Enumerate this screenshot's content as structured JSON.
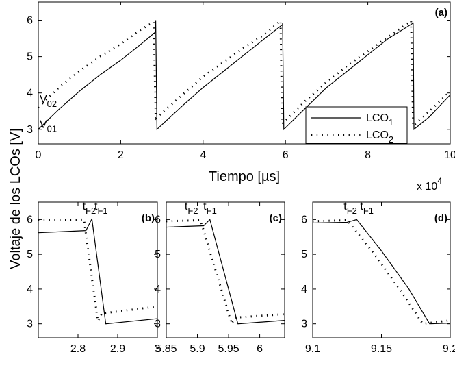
{
  "figure": {
    "ylabel": "Voltaje de los LCOs [V]",
    "colors": {
      "lco1": "#000000",
      "lco2": "#000000",
      "background": "#ffffff"
    }
  },
  "chart_data": [
    {
      "id": "a",
      "type": "line",
      "panel_label": "(a)",
      "xlabel": "Tiempo  [µs]",
      "x_multiplier": "x 10",
      "x_multiplier_exp": "4",
      "xlim": [
        0,
        10
      ],
      "ylim": [
        2.6,
        6.5
      ],
      "xticks": [
        0,
        2,
        4,
        6,
        8,
        10
      ],
      "xtick_labels": [
        "0",
        "2",
        "4",
        "6",
        "8",
        "10"
      ],
      "yticks": [
        3,
        4,
        5,
        6
      ],
      "ytick_labels": [
        "3",
        "4",
        "5",
        "6"
      ],
      "legend_position": "bottom-right",
      "annotations": [
        {
          "main": "V",
          "sub": "02",
          "x": 0,
          "y": 3.62
        },
        {
          "main": "V",
          "sub": "01",
          "x": 0,
          "y": 2.93
        }
      ],
      "series": [
        {
          "name": "LCO",
          "name_sub": "1",
          "style": "solid",
          "points": [
            [
              0,
              3.0
            ],
            [
              0.5,
              3.55
            ],
            [
              1,
              4.05
            ],
            [
              1.5,
              4.5
            ],
            [
              2,
              4.9
            ],
            [
              2.5,
              5.35
            ],
            [
              2.85,
              5.68
            ],
            [
              2.85,
              6.0
            ],
            [
              2.88,
              3.0
            ],
            [
              3.5,
              3.65
            ],
            [
              4,
              4.15
            ],
            [
              4.5,
              4.6
            ],
            [
              5,
              5.05
            ],
            [
              5.5,
              5.5
            ],
            [
              5.93,
              5.88
            ],
            [
              5.93,
              5.92
            ],
            [
              5.96,
              3.0
            ],
            [
              6.5,
              3.6
            ],
            [
              7,
              4.15
            ],
            [
              7.5,
              4.6
            ],
            [
              8,
              5.05
            ],
            [
              8.5,
              5.5
            ],
            [
              9.1,
              5.92
            ],
            [
              9.12,
              3.0
            ],
            [
              9.5,
              3.35
            ],
            [
              10,
              3.95
            ]
          ]
        },
        {
          "name": "LCO",
          "name_sub": "2",
          "style": "dotted",
          "points": [
            [
              0,
              3.6
            ],
            [
              0.5,
              4.15
            ],
            [
              1,
              4.6
            ],
            [
              1.5,
              5.0
            ],
            [
              2,
              5.35
            ],
            [
              2.5,
              5.75
            ],
            [
              2.8,
              5.95
            ],
            [
              2.85,
              3.3
            ],
            [
              3.5,
              3.95
            ],
            [
              4,
              4.45
            ],
            [
              4.5,
              4.85
            ],
            [
              5,
              5.25
            ],
            [
              5.5,
              5.62
            ],
            [
              5.88,
              5.98
            ],
            [
              5.92,
              3.15
            ],
            [
              6.5,
              3.8
            ],
            [
              7,
              4.3
            ],
            [
              7.5,
              4.75
            ],
            [
              8,
              5.15
            ],
            [
              8.5,
              5.55
            ],
            [
              9.05,
              5.98
            ],
            [
              9.1,
              3.1
            ],
            [
              9.5,
              3.5
            ],
            [
              10,
              4.05
            ]
          ]
        }
      ]
    },
    {
      "id": "b",
      "type": "line",
      "panel_label": "(b)",
      "xlim": [
        2.7,
        3.0
      ],
      "ylim": [
        2.6,
        6.5
      ],
      "xticks": [
        2.8,
        2.9,
        3.0
      ],
      "xtick_labels": [
        "2.8",
        "2.9",
        "3"
      ],
      "yticks": [
        3,
        4,
        5,
        6
      ],
      "ytick_labels": [
        "3",
        "4",
        "5",
        "6"
      ],
      "annotations": [
        {
          "main": "t",
          "sub": "F2",
          "x": 2.82,
          "y": 6.2
        },
        {
          "main": "t",
          "sub": "F1",
          "x": 2.85,
          "y": 6.2
        }
      ],
      "series": [
        {
          "name": "",
          "style": "solid",
          "points": [
            [
              2.7,
              5.62
            ],
            [
              2.82,
              5.68
            ],
            [
              2.835,
              6.02
            ],
            [
              2.87,
              3.0
            ],
            [
              3.0,
              3.15
            ]
          ]
        },
        {
          "name": "",
          "style": "dotted",
          "points": [
            [
              2.7,
              5.98
            ],
            [
              2.815,
              6.0
            ],
            [
              2.85,
              3.08
            ],
            [
              2.86,
              3.3
            ],
            [
              3.0,
              3.5
            ]
          ]
        }
      ]
    },
    {
      "id": "c",
      "type": "line",
      "panel_label": "(c)",
      "xlim": [
        5.85,
        6.04
      ],
      "ylim": [
        2.6,
        6.5
      ],
      "xticks": [
        5.85,
        5.9,
        5.95,
        6.0
      ],
      "xtick_labels": [
        "5.85",
        "5.9",
        "5.95",
        "6"
      ],
      "yticks": [
        3,
        4,
        5,
        6
      ],
      "ytick_labels": [
        "3",
        "4",
        "5",
        "6"
      ],
      "annotations": [
        {
          "main": "t",
          "sub": "F2",
          "x": 5.885,
          "y": 6.2
        },
        {
          "main": "t",
          "sub": "F1",
          "x": 5.915,
          "y": 6.2
        }
      ],
      "series": [
        {
          "name": "",
          "style": "solid",
          "points": [
            [
              5.85,
              5.78
            ],
            [
              5.91,
              5.82
            ],
            [
              5.92,
              6.0
            ],
            [
              5.965,
              3.0
            ],
            [
              6.04,
              3.1
            ]
          ]
        },
        {
          "name": "",
          "style": "dotted",
          "points": [
            [
              5.85,
              5.95
            ],
            [
              5.905,
              5.98
            ],
            [
              5.955,
              3.0
            ],
            [
              5.96,
              3.18
            ],
            [
              6.04,
              3.28
            ]
          ]
        }
      ]
    },
    {
      "id": "d",
      "type": "line",
      "panel_label": "(d)",
      "xlim": [
        9.1,
        9.2
      ],
      "ylim": [
        2.6,
        6.5
      ],
      "xticks": [
        9.1,
        9.15,
        9.2
      ],
      "xtick_labels": [
        "9.1",
        "9.15",
        "9.2"
      ],
      "yticks": [
        3,
        4,
        5,
        6
      ],
      "ytick_labels": [
        "3",
        "4",
        "5",
        "6"
      ],
      "annotations": [
        {
          "main": "t",
          "sub": "F2",
          "x": 9.125,
          "y": 6.2
        },
        {
          "main": "t",
          "sub": "F1",
          "x": 9.137,
          "y": 6.2
        }
      ],
      "series": [
        {
          "name": "",
          "style": "solid",
          "points": [
            [
              9.1,
              5.9
            ],
            [
              9.125,
              5.92
            ],
            [
              9.132,
              6.0
            ],
            [
              9.15,
              5.1
            ],
            [
              9.17,
              4.0
            ],
            [
              9.185,
              3.0
            ],
            [
              9.2,
              3.02
            ]
          ]
        },
        {
          "name": "",
          "style": "dotted",
          "points": [
            [
              9.1,
              5.95
            ],
            [
              9.125,
              5.98
            ],
            [
              9.145,
              5.0
            ],
            [
              9.165,
              3.9
            ],
            [
              9.18,
              3.0
            ],
            [
              9.2,
              3.1
            ]
          ]
        }
      ]
    }
  ]
}
